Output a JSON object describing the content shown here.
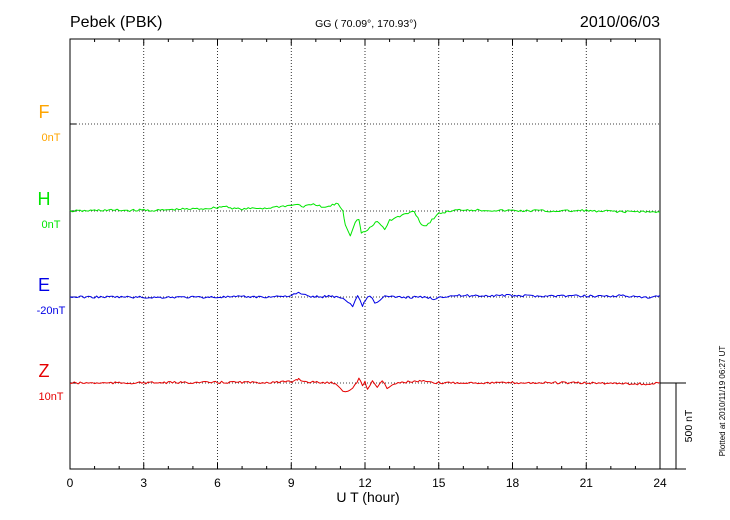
{
  "chart_data": {
    "type": "line",
    "station": "Pebek (PBK)",
    "coords": "GG ( 70.09°, 170.93°)",
    "date": "2010/06/03",
    "xlabel": "U T (hour)",
    "xlim": [
      0,
      24
    ],
    "xticks": [
      "0",
      "3",
      "6",
      "9",
      "12",
      "15",
      "18",
      "21",
      "24"
    ],
    "scale_label": "500 nT",
    "plotted_note": "Plotted at 2010/11/19 06:27 UT",
    "grid": true,
    "series": [
      {
        "name": "F",
        "baseline_label": "0nT",
        "color": "#ffa500",
        "x": [],
        "y": []
      },
      {
        "name": "H",
        "baseline_label": "0nT",
        "color": "#00e600",
        "x": [
          0,
          0.5,
          1,
          1.5,
          2,
          2.5,
          3,
          3.5,
          4,
          4.5,
          5,
          5.5,
          6,
          6.3,
          6.6,
          7,
          7.5,
          8,
          8.5,
          9,
          9.2,
          9.5,
          9.8,
          10,
          10.3,
          10.6,
          10.9,
          11.1,
          11.2,
          11.4,
          11.6,
          11.75,
          11.85,
          12,
          12.2,
          12.5,
          12.8,
          13,
          13.5,
          14,
          14.3,
          14.5,
          14.8,
          15,
          15.5,
          16,
          16.5,
          17,
          17.5,
          18,
          18.5,
          19,
          19.5,
          20,
          20.5,
          21,
          21.5,
          22,
          22.5,
          23,
          23.5,
          24
        ],
        "y": [
          0,
          0,
          3,
          5,
          4,
          3,
          6,
          2,
          7,
          10,
          12,
          14,
          20,
          28,
          17,
          10,
          16,
          16,
          26,
          32,
          40,
          25,
          35,
          38,
          18,
          30,
          45,
          0,
          -80,
          -140,
          -65,
          -45,
          -130,
          -120,
          -100,
          -60,
          -105,
          -55,
          -25,
          0,
          -80,
          -85,
          -40,
          -15,
          0,
          8,
          6,
          4,
          2,
          3,
          0,
          3,
          -2,
          1,
          0,
          4,
          -5,
          1,
          -6,
          -2,
          -5,
          -8
        ]
      },
      {
        "name": "E",
        "baseline_label": "-20nT",
        "color": "#0000e6",
        "x": [
          0,
          1,
          2,
          3,
          3.5,
          4,
          5,
          6,
          7,
          8,
          8.5,
          9,
          9.2,
          9.3,
          9.5,
          9.8,
          10.2,
          10.6,
          10.9,
          11.1,
          11.3,
          11.5,
          11.7,
          11.9,
          12,
          12.2,
          12.4,
          12.6,
          12.8,
          13,
          13.5,
          14,
          14.5,
          14.8,
          15,
          15.5,
          16,
          16.5,
          17,
          17.5,
          18,
          18.5,
          19,
          20,
          21,
          22,
          22.5,
          23,
          23.5,
          24
        ],
        "y": [
          0,
          0,
          0,
          -2,
          -3,
          -1,
          -1,
          -1,
          1,
          0,
          4,
          8,
          18,
          25,
          12,
          3,
          0,
          6,
          -1,
          -2,
          -35,
          -50,
          8,
          -50,
          -20,
          10,
          -35,
          -20,
          5,
          0,
          -1,
          -1,
          -2,
          -10,
          0,
          7,
          8,
          8,
          8,
          9,
          8,
          7,
          6,
          7,
          6,
          6,
          8,
          0,
          -6,
          8
        ]
      },
      {
        "name": "Z",
        "baseline_label": "10nT",
        "color": "#e60000",
        "x": [
          0,
          1,
          2,
          3,
          4,
          5,
          6,
          7,
          7.5,
          8,
          8.5,
          9,
          9.2,
          9.3,
          9.5,
          9.8,
          10.2,
          10.8,
          11,
          11.2,
          11.4,
          11.6,
          11.75,
          11.9,
          12,
          12.1,
          12.3,
          12.5,
          12.7,
          12.9,
          13.1,
          13.5,
          14,
          14.3,
          14.6,
          14.8,
          15,
          15.5,
          16,
          17,
          18,
          19,
          20,
          21,
          22,
          22.5,
          23,
          23.5,
          24
        ],
        "y": [
          0,
          0,
          0,
          1,
          2,
          3,
          3,
          5,
          2,
          4,
          5,
          6,
          20,
          24,
          10,
          5,
          3,
          0,
          -30,
          -55,
          -40,
          -10,
          25,
          -15,
          10,
          -35,
          12,
          -25,
          15,
          -35,
          -8,
          5,
          8,
          10,
          5,
          -3,
          1,
          2,
          2,
          1,
          1,
          1,
          1,
          0,
          -2,
          -1,
          -5,
          -8,
          0
        ]
      }
    ]
  }
}
